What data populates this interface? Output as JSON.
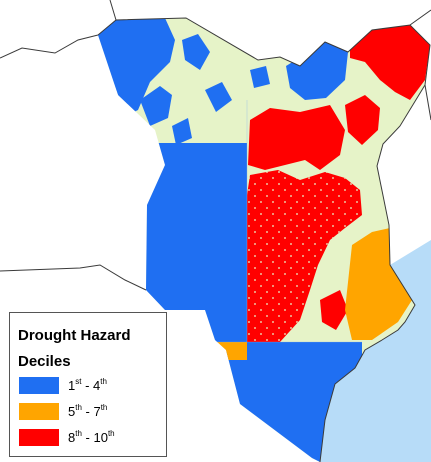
{
  "legend": {
    "title_line1": "Drought Hazard",
    "title_line2": "Deciles",
    "items": [
      {
        "from": "1",
        "from_suffix": "st",
        "to": "4",
        "to_suffix": "th",
        "separator": " - ",
        "color": "#1f6ff2"
      },
      {
        "from": "5",
        "from_suffix": "th",
        "to": "7",
        "to_suffix": "th",
        "separator": " - ",
        "color": "#ffa500"
      },
      {
        "from": "8",
        "from_suffix": "th",
        "to": "10",
        "to_suffix": "th",
        "separator": " - ",
        "color": "#ff0000"
      }
    ]
  },
  "colors": {
    "background": "#ffffff",
    "land_base": "#e6f3c8",
    "ocean": "#b7dcf8",
    "boundary": "#3a3a3a",
    "low_hazard": "#1f6ff2",
    "mid_hazard": "#ffa500",
    "high_hazard": "#ff0000"
  }
}
